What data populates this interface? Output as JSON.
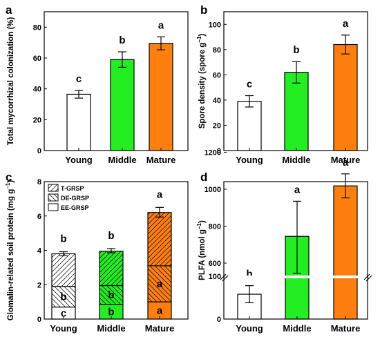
{
  "chart_data": [
    {
      "panel": "a",
      "type": "bar",
      "categories": [
        "Young",
        "Middle",
        "Mature"
      ],
      "values": [
        36.5,
        59.0,
        69.5
      ],
      "errors": [
        2.5,
        5.0,
        4.2
      ],
      "labels": [
        "c",
        "b",
        "a"
      ],
      "colors": [
        "#ffffff",
        "#22ee22",
        "#ff7f0e"
      ],
      "ylabel": "Total mycorrhizal colonization (%)",
      "ylim": [
        0,
        90
      ],
      "yticks": [
        "0",
        "20",
        "40",
        "60",
        "80"
      ]
    },
    {
      "panel": "b",
      "type": "bar",
      "categories": [
        "Young",
        "Middle",
        "Mature"
      ],
      "values": [
        39,
        62,
        84
      ],
      "errors": [
        4.5,
        8.5,
        7.5
      ],
      "labels": [
        "c",
        "b",
        "a"
      ],
      "colors": [
        "#ffffff",
        "#22ee22",
        "#ff7f0e"
      ],
      "ylabel": "Spore density (spore g⁻¹)",
      "ylim": [
        0,
        110
      ],
      "yticks": [
        "0",
        "20",
        "40",
        "60",
        "80",
        "100"
      ]
    },
    {
      "panel": "c",
      "type": "bar",
      "stacked": true,
      "categories": [
        "Young",
        "Middle",
        "Mature"
      ],
      "series": [
        {
          "name": "EE-GRSP",
          "values": [
            0.7,
            0.85,
            1.0
          ],
          "labels": [
            "c",
            "b",
            "a"
          ]
        },
        {
          "name": "DE-GRSP",
          "values": [
            1.2,
            1.1,
            2.1
          ],
          "labels": [
            "b",
            "b",
            "a"
          ]
        },
        {
          "name": "T-GRSP",
          "values": [
            1.9,
            2.0,
            3.1
          ]
        }
      ],
      "totals": [
        3.8,
        3.98,
        6.22
      ],
      "errors": [
        0.12,
        0.12,
        0.28
      ],
      "total_labels": [
        "b",
        "b",
        "a"
      ],
      "colors": [
        "#ffffff",
        "#22ee22",
        "#ff7f0e"
      ],
      "legend": [
        "T-GRSP",
        "DE-GRSP",
        "EE-GRSP"
      ],
      "ylabel": "Glomalin-related soil protein (mg g⁻¹)",
      "ylim": [
        0,
        8
      ],
      "yticks": [
        "0",
        "2",
        "4",
        "6",
        "8"
      ]
    },
    {
      "panel": "d",
      "type": "bar",
      "broken_axis": true,
      "categories": [
        "Young",
        "Middle",
        "Mature"
      ],
      "values": [
        58,
        745,
        1018
      ],
      "err_low": [
        20,
        200,
        65
      ],
      "err_high": [
        20,
        190,
        65
      ],
      "labels": [
        "b",
        "a",
        "a"
      ],
      "colors": [
        "#ffffff",
        "#22ee22",
        "#ff7f0e"
      ],
      "ylabel": "PLFA (nmol g⁻¹)",
      "yticks": [
        "0",
        "100",
        "600",
        "800",
        "1000",
        "1200"
      ]
    }
  ]
}
